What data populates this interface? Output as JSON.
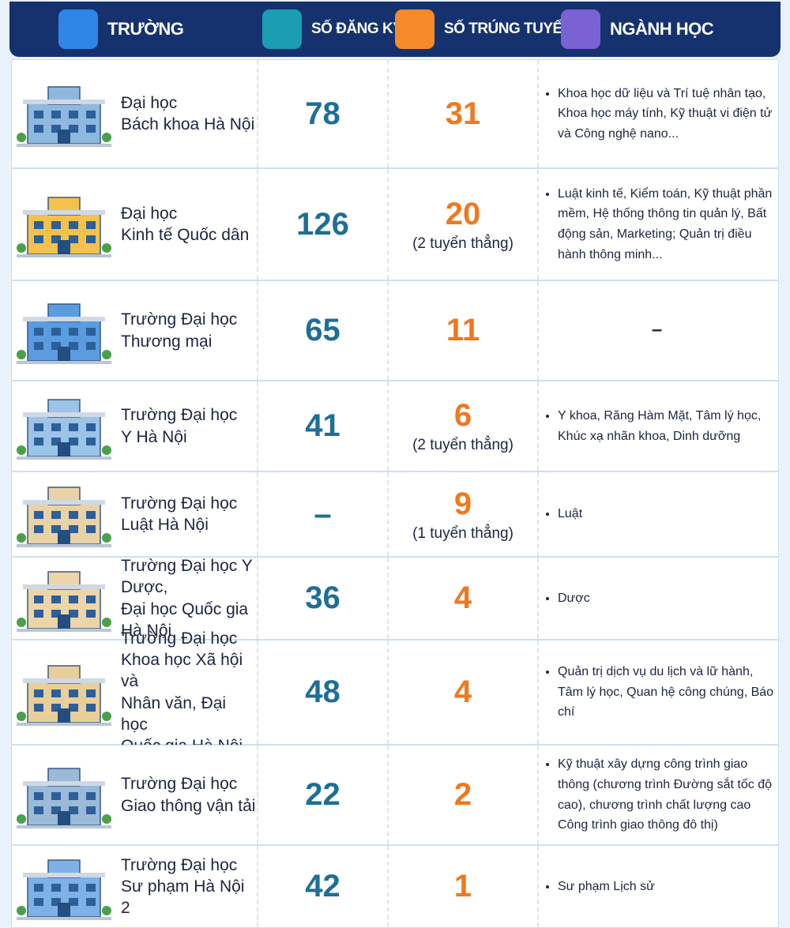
{
  "header": {
    "columns": [
      "TRƯỜNG",
      "SỐ ĐĂNG KÝ",
      "SỐ TRÚNG TUYỂN",
      "NGÀNH HỌC"
    ]
  },
  "table": {
    "rows": [
      {
        "school": [
          "Đại học",
          "Bách khoa Hà Nội"
        ],
        "registered": 78,
        "admitted": 31,
        "majors": [
          "Khoa học dữ liệu và Trí tuệ nhân tạo, Khoa học máy tính, Kỹ thuật vi điện tử và Công nghệ nano..."
        ]
      },
      {
        "school": [
          "Đại học",
          "Kinh tế Quốc dân"
        ],
        "registered": 126,
        "admitted": 20,
        "admitted_note": "(2 tuyển thẳng)",
        "majors": [
          "Luật kinh tế, Kiểm toán, Kỹ thuật phần mềm, Hệ thống thông tin quản lý, Bất động sản, Marketing; Quản trị điều hành thông minh..."
        ]
      },
      {
        "school": [
          "Trường Đại học",
          "Thương mại"
        ],
        "registered": 65,
        "admitted": 11,
        "majors_text": "–"
      },
      {
        "school": [
          "Trường Đại học",
          "Y Hà Nội"
        ],
        "registered": 41,
        "admitted": 6,
        "admitted_note": "(2 tuyển thẳng)",
        "majors": [
          "Y khoa, Răng Hàm Mặt, Tâm lý học, Khúc xạ nhãn khoa, Dinh dưỡng"
        ]
      },
      {
        "school": [
          "Trường Đại học",
          "Luật Hà Nội"
        ],
        "registered": "–",
        "admitted": 9,
        "admitted_note": "(1 tuyển thẳng)",
        "majors": [
          "Luật"
        ]
      },
      {
        "school": [
          "Trường Đại học Y Dược,",
          "Đại học Quốc gia Hà Nội"
        ],
        "registered": 36,
        "admitted": 4,
        "majors": [
          "Dược"
        ]
      },
      {
        "school": [
          "Trường Đại học",
          "Khoa học Xã hội và",
          "Nhân văn, Đại học",
          "Quốc gia Hà Nội"
        ],
        "registered": 48,
        "admitted": 4,
        "majors": [
          "Quản trị dịch vụ du lịch và lữ hành, Tâm lý học, Quan hệ công chúng, Báo chí"
        ]
      },
      {
        "school": [
          "Trường Đại học",
          "Giao thông vận tải"
        ],
        "registered": 22,
        "admitted": 2,
        "majors": [
          "Kỹ thuật xây dựng công trình giao thông (chương trình Đường sắt tốc độ cao), chương trình chất lượng cao Công trình giao thông đô thị)"
        ]
      },
      {
        "school": [
          "Trường Đại học",
          "Sư phạm Hà Nội 2"
        ],
        "registered": 42,
        "admitted": 1,
        "majors": [
          "Sư phạm Lịch sử"
        ]
      }
    ]
  }
}
